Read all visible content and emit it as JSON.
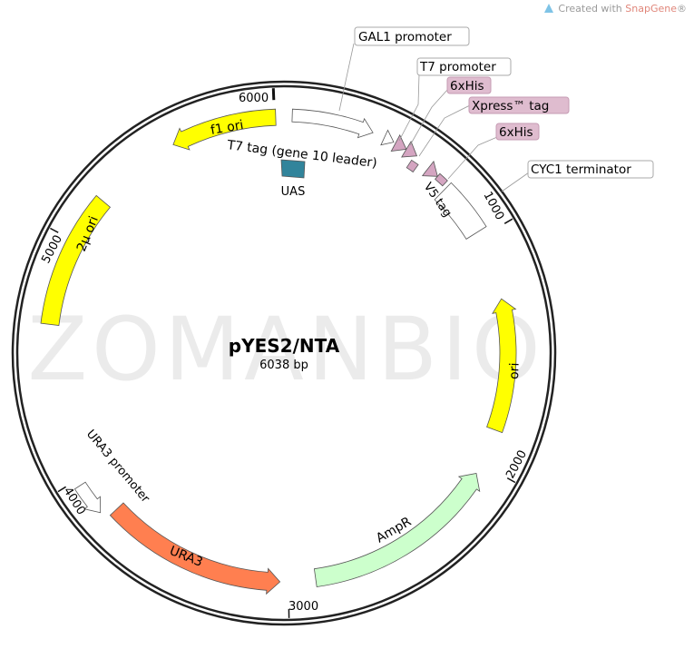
{
  "credit": {
    "prefix": "Created with ",
    "brand": "SnapGene",
    "suffix": "®"
  },
  "watermark": "ZOMANBIO",
  "plasmid": {
    "name": "pYES2/NTA",
    "length": "6038 bp"
  },
  "ticks": [
    "1000",
    "2000",
    "3000",
    "4000",
    "5000",
    "6000"
  ],
  "features": {
    "gal1": "GAL1 promoter",
    "t7tag": "T7 tag (gene 10 leader)",
    "f1": "f1 ori",
    "uas": "UAS",
    "twomu": "2μ ori",
    "ori": "ori",
    "ampr": "AmpR",
    "ura3": "URA3",
    "ura3p": "URA3 promoter",
    "v5": "V5 tag"
  },
  "callouts": {
    "gal1": "GAL1 promoter",
    "t7p": "T7 promoter",
    "his1": "6xHis",
    "xpress": "Xpress™ tag",
    "his2": "6xHis",
    "cyc1": "CYC1 terminator"
  },
  "colors": {
    "yellow": "#ffff00",
    "orange": "#ff7f50",
    "green": "#ccffcc",
    "pink": "#d4a5c1",
    "teal": "#31849b",
    "outline": "#ffffff"
  }
}
